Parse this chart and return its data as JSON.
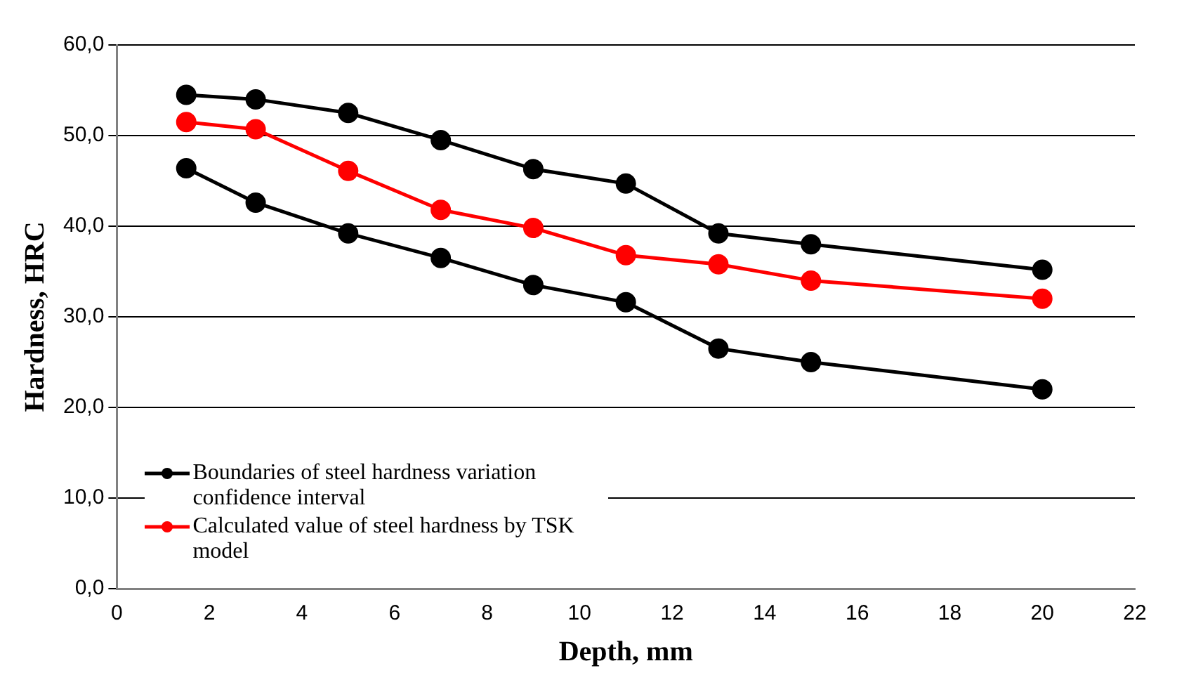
{
  "chart_data": {
    "type": "line",
    "xlabel": "Depth, mm",
    "ylabel": "Hardness, HRC",
    "x": [
      1.5,
      3,
      5,
      7,
      9,
      11,
      13,
      15,
      20
    ],
    "series": [
      {
        "name": "Boundaries of steel hardness variation confidence interval",
        "color": "#000000",
        "values": [
          54.5,
          54,
          52.5,
          49.5,
          46.3,
          44.7,
          39.2,
          38,
          35.2
        ]
      },
      {
        "name": "Calculated value of steel hardness by TSK model",
        "color": "#ff0000",
        "values": [
          51.5,
          50.7,
          46.1,
          41.8,
          39.8,
          36.8,
          35.8,
          34,
          32
        ]
      },
      {
        "color": "#000000",
        "values": [
          46.4,
          42.6,
          39.2,
          36.5,
          33.5,
          31.6,
          26.5,
          25,
          22
        ]
      }
    ],
    "xlim": [
      0,
      22
    ],
    "xticks": [
      0,
      2,
      4,
      6,
      8,
      10,
      12,
      14,
      16,
      18,
      20,
      22
    ],
    "ylim": [
      0,
      60
    ],
    "yticks": [
      {
        "value": 0,
        "label": "0,0"
      },
      {
        "value": 10,
        "label": "10,0"
      },
      {
        "value": 20,
        "label": "20,0"
      },
      {
        "value": 30,
        "label": "30,0"
      },
      {
        "value": 40,
        "label": "40,0"
      },
      {
        "value": 50,
        "label": "50,0"
      },
      {
        "value": 60,
        "label": "60,0"
      }
    ],
    "grid": "y",
    "legend": "bottom left",
    "marker": "circle",
    "line_style": "solid"
  }
}
